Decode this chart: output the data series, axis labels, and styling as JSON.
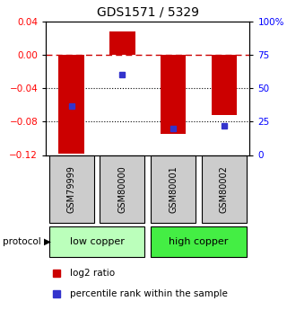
{
  "title": "GDS1571 / 5329",
  "samples": [
    "GSM79999",
    "GSM80000",
    "GSM80001",
    "GSM80002"
  ],
  "log2_ratios": [
    -0.118,
    0.028,
    -0.095,
    -0.072
  ],
  "percentile_ranks": [
    37,
    60,
    20,
    22
  ],
  "ylim_left": [
    -0.12,
    0.04
  ],
  "ylim_right": [
    0,
    100
  ],
  "yticks_left": [
    -0.12,
    -0.08,
    -0.04,
    0,
    0.04
  ],
  "yticks_right": [
    0,
    25,
    50,
    75,
    100
  ],
  "bar_color": "#cc0000",
  "dot_color": "#3333cc",
  "hline_color_dashed": "#cc0000",
  "hline_color_dotted": "#000000",
  "protocol_groups": [
    {
      "label": "low copper",
      "samples": [
        0,
        1
      ],
      "color": "#bbffbb"
    },
    {
      "label": "high copper",
      "samples": [
        2,
        3
      ],
      "color": "#44ee44"
    }
  ],
  "legend_red_label": "log2 ratio",
  "legend_blue_label": "percentile rank within the sample",
  "background_color": "#ffffff",
  "sample_box_color": "#cccccc",
  "bar_width": 0.5
}
